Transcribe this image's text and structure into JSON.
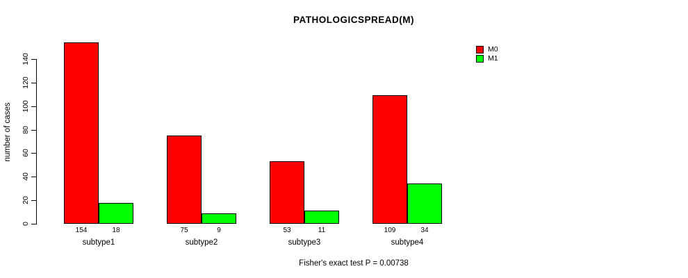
{
  "chart_data": {
    "type": "bar",
    "title": "PATHOLOGICSPREAD(M)",
    "xlabel": "",
    "ylabel": "number of cases",
    "categories": [
      "subtype1",
      "subtype2",
      "subtype3",
      "subtype4"
    ],
    "series": [
      {
        "name": "M0",
        "color": "#ff0000",
        "values": [
          154,
          75,
          53,
          109
        ]
      },
      {
        "name": "M1",
        "color": "#00ff00",
        "values": [
          18,
          9,
          11,
          34
        ]
      }
    ],
    "yticks": [
      0,
      20,
      40,
      60,
      80,
      100,
      120,
      140
    ],
    "ylim": [
      0,
      157
    ],
    "grid": false,
    "legend_position": "right",
    "annotation": "Fisher's exact test P = 0.00738"
  },
  "colors": {
    "axis": "#000000",
    "text": "#000000",
    "background": "#ffffff",
    "m0": "#ff0000",
    "m1": "#00ff00"
  }
}
